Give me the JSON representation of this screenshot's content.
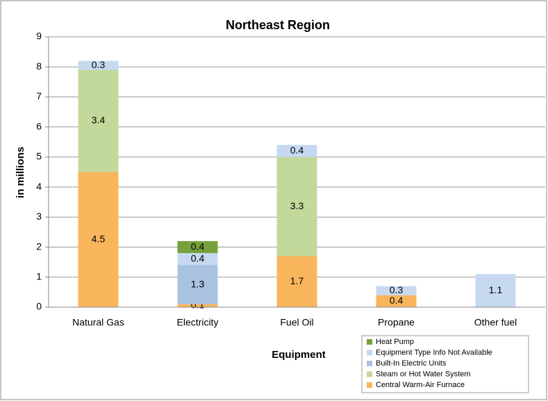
{
  "chart_data": {
    "type": "stacked_bar",
    "title": "Northeast Region",
    "x_label": "Equipment",
    "y_label": "in millions",
    "categories": [
      "Natural Gas",
      "Electricity",
      "Fuel Oil",
      "Propane",
      "Other fuel"
    ],
    "series": [
      {
        "name": "Central Warm-Air Furnace",
        "color": "#f9b55c",
        "values": [
          4.5,
          0.1,
          1.7,
          0.4,
          null
        ]
      },
      {
        "name": "Steam or Hot Water System",
        "color": "#c3d99b",
        "values": [
          3.4,
          null,
          3.3,
          null,
          null
        ]
      },
      {
        "name": "Built-In Electric Units",
        "color": "#aac3e0",
        "values": [
          null,
          1.3,
          null,
          null,
          null
        ]
      },
      {
        "name": "Equipment Type Info Not Available",
        "color": "#c6d9f1",
        "values": [
          0.3,
          0.4,
          0.4,
          0.3,
          1.1
        ]
      },
      {
        "name": "Heat Pump",
        "color": "#77a03c",
        "values": [
          null,
          0.4,
          null,
          null,
          null
        ]
      }
    ],
    "ylim": [
      0,
      9
    ],
    "yticks": [
      0,
      1,
      2,
      3,
      4,
      5,
      6,
      7,
      8,
      9
    ],
    "grid": true,
    "legend": "lower right"
  }
}
